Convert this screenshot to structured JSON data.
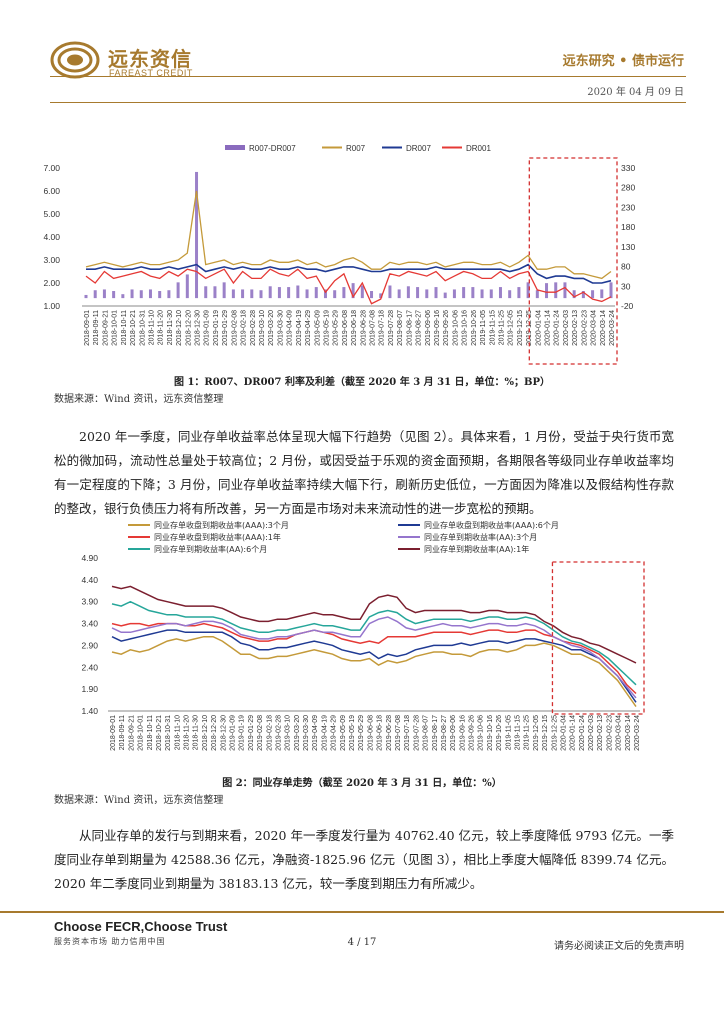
{
  "header": {
    "logo_cn": "远东资信",
    "logo_en": "FAREAST CREDIT",
    "report_title": "远东研究 • 债市运行",
    "date": "2020 年 04 月 09 日"
  },
  "figure1": {
    "caption": "图 1：R007、DR007 利率及利差（截至 2020 年 3 月 31 日，单位：%；BP）",
    "source": "数据来源：Wind 资讯，远东资信整理"
  },
  "paragraph1": "2020 年一季度，同业存单收益率总体呈现大幅下行趋势（见图 2）。具体来看，1 月份，受益于央行货币宽松的微加码，流动性总量处于较高位；2 月份，或因受益于乐观的资金面预期，各期限各等级同业存单收益率均有一定程度的下降；3 月份，同业存单收益率持续大幅下行，刷新历史低位，一方面因为降准以及假结构性存款的整改，银行负债压力将有所改善，另一方面是市场对未来流动性的进一步宽松的预期。",
  "figure2": {
    "caption": "图 2：同业存单走势（截至 2020 年 3 月 31 日，单位：%）",
    "source": "数据来源：Wind 资讯，远东资信整理"
  },
  "paragraph2": "从同业存单的发行与到期来看，2020 年一季度发行量为 40762.40 亿元，较上季度降低 9793 亿元。一季度同业存单到期量为 42588.36 亿元，净融资-1825.96 亿元（见图 3），相比上季度大幅降低 8399.74 亿元。2020 年二季度同业到期量为 38183.13 亿元，较一季度到期压力有所减少。",
  "footer": {
    "brand": "Choose FECR,Choose Trust",
    "slogan": "服务资本市场   助力信用中国",
    "page": "4 / 17",
    "disclaimer": "请务必阅读正文后的免责声明"
  },
  "chart_data": [
    {
      "type": "line",
      "dates": [
        "2018-09-01",
        "2018-09-11",
        "2018-09-21",
        "2018-10-01",
        "2018-10-11",
        "2018-10-21",
        "2018-10-31",
        "2018-11-10",
        "2018-11-20",
        "2018-11-30",
        "2018-12-10",
        "2018-12-20",
        "2018-12-30",
        "2019-01-09",
        "2019-01-19",
        "2019-01-29",
        "2019-02-08",
        "2019-02-18",
        "2019-02-28",
        "2019-03-10",
        "2019-03-20",
        "2019-03-30",
        "2019-04-09",
        "2019-04-19",
        "2019-04-29",
        "2019-05-09",
        "2019-05-19",
        "2019-05-29",
        "2019-06-08",
        "2019-06-18",
        "2019-06-28",
        "2019-07-08",
        "2019-07-18",
        "2019-07-28",
        "2019-08-07",
        "2019-08-17",
        "2019-08-27",
        "2019-09-06",
        "2019-09-16",
        "2019-09-26",
        "2019-10-06",
        "2019-10-16",
        "2019-10-26",
        "2019-11-05",
        "2019-11-15",
        "2019-11-25",
        "2019-12-05",
        "2019-12-15",
        "2019-12-25",
        "2020-01-04",
        "2020-01-14",
        "2020-01-24",
        "2020-02-03",
        "2020-02-13",
        "2020-02-23",
        "2020-03-04",
        "2020-03-14",
        "2020-03-24"
      ],
      "y_left_ticks": [
        "1.00",
        "2.00",
        "3.00",
        "4.00",
        "5.00",
        "6.00",
        "7.00"
      ],
      "y_right_ticks": [
        "-20",
        "30",
        "80",
        "130",
        "180",
        "230",
        "280",
        "330"
      ],
      "ylim_left": [
        1,
        7
      ],
      "ylim_right": [
        -20,
        330
      ],
      "legend": [
        "R007-DR007",
        "R007",
        "DR007",
        "DR001"
      ],
      "legend_position": "top",
      "colors": {
        "spread": "#8a6bbe",
        "r007": "#c49a3a",
        "dr007": "#1f3a93",
        "dr001": "#e53935",
        "highlight": "#d32f2f"
      },
      "series": [
        {
          "name": "R007",
          "axis": "left",
          "values": [
            2.7,
            2.8,
            2.9,
            2.8,
            2.7,
            2.8,
            2.9,
            2.8,
            2.8,
            2.9,
            3.0,
            3.3,
            6.0,
            2.8,
            2.9,
            3.0,
            2.8,
            2.9,
            2.8,
            2.8,
            3.0,
            2.9,
            2.9,
            3.0,
            2.8,
            2.9,
            2.7,
            2.8,
            3.0,
            3.1,
            2.9,
            2.6,
            2.6,
            2.9,
            2.8,
            2.9,
            2.9,
            2.8,
            2.9,
            2.7,
            2.8,
            2.9,
            2.9,
            2.8,
            2.8,
            2.9,
            2.7,
            2.9,
            3.2,
            2.6,
            2.6,
            2.7,
            2.7,
            2.4,
            2.4,
            2.3,
            2.2,
            2.5
          ]
        },
        {
          "name": "DR007",
          "axis": "left",
          "values": [
            2.6,
            2.6,
            2.7,
            2.6,
            2.6,
            2.6,
            2.7,
            2.6,
            2.6,
            2.7,
            2.6,
            2.7,
            2.8,
            2.5,
            2.6,
            2.7,
            2.6,
            2.7,
            2.6,
            2.6,
            2.7,
            2.6,
            2.6,
            2.7,
            2.6,
            2.6,
            2.5,
            2.6,
            2.7,
            2.7,
            2.6,
            2.5,
            2.5,
            2.6,
            2.6,
            2.6,
            2.6,
            2.6,
            2.7,
            2.6,
            2.6,
            2.6,
            2.6,
            2.6,
            2.6,
            2.6,
            2.5,
            2.6,
            2.8,
            2.4,
            2.2,
            2.3,
            2.3,
            2.2,
            2.2,
            2.0,
            2.0,
            2.1
          ]
        },
        {
          "name": "DR001",
          "axis": "left",
          "values": [
            2.3,
            2.0,
            2.5,
            2.2,
            2.3,
            2.4,
            2.5,
            2.3,
            2.2,
            2.5,
            2.3,
            2.6,
            2.5,
            2.2,
            2.4,
            2.6,
            2.0,
            2.5,
            2.2,
            2.2,
            2.6,
            2.4,
            2.3,
            2.6,
            2.2,
            2.3,
            1.6,
            2.1,
            2.4,
            1.4,
            2.0,
            1.1,
            1.3,
            2.4,
            2.3,
            2.5,
            2.4,
            2.3,
            2.5,
            2.1,
            2.3,
            2.5,
            2.4,
            2.2,
            2.2,
            2.5,
            2.2,
            2.4,
            2.5,
            1.7,
            1.6,
            1.6,
            1.8,
            1.4,
            1.6,
            1.3,
            1.2,
            1.4
          ]
        },
        {
          "name": "R007-DR007",
          "axis": "right",
          "values": [
            8,
            20,
            22,
            18,
            10,
            22,
            20,
            22,
            18,
            20,
            40,
            60,
            320,
            30,
            30,
            40,
            22,
            22,
            22,
            20,
            30,
            28,
            28,
            32,
            22,
            28,
            22,
            20,
            28,
            38,
            32,
            18,
            12,
            32,
            22,
            30,
            28,
            22,
            28,
            14,
            22,
            28,
            28,
            22,
            22,
            28,
            20,
            28,
            40,
            20,
            38,
            40,
            40,
            20,
            18,
            20,
            22,
            40
          ]
        }
      ],
      "annotation": "dashed box highlighting 2020Q1"
    },
    {
      "type": "line",
      "dates": [
        "2018-09-01",
        "2018-09-11",
        "2018-09-21",
        "2018-10-01",
        "2018-10-11",
        "2018-10-21",
        "2018-10-31",
        "2018-11-10",
        "2018-11-20",
        "2018-11-30",
        "2018-12-10",
        "2018-12-20",
        "2018-12-30",
        "2019-01-09",
        "2019-01-19",
        "2019-01-29",
        "2019-02-08",
        "2019-02-18",
        "2019-02-28",
        "2019-03-10",
        "2019-03-20",
        "2019-03-30",
        "2019-04-09",
        "2019-04-19",
        "2019-04-29",
        "2019-05-09",
        "2019-05-19",
        "2019-05-29",
        "2019-06-08",
        "2019-06-18",
        "2019-06-28",
        "2019-07-08",
        "2019-07-18",
        "2019-07-28",
        "2019-08-07",
        "2019-08-17",
        "2019-08-27",
        "2019-09-06",
        "2019-09-16",
        "2019-09-26",
        "2019-10-06",
        "2019-10-16",
        "2019-10-26",
        "2019-11-05",
        "2019-11-15",
        "2019-11-25",
        "2019-12-05",
        "2019-12-15",
        "2019-12-25",
        "2020-01-04",
        "2020-01-14",
        "2020-01-24",
        "2020-02-03",
        "2020-02-13",
        "2020-02-23",
        "2020-03-04",
        "2020-03-14",
        "2020-03-24"
      ],
      "y_ticks": [
        "1.40",
        "1.90",
        "2.40",
        "2.90",
        "3.40",
        "3.90",
        "4.40",
        "4.90"
      ],
      "ylim": [
        1.4,
        4.9
      ],
      "legend_position": "top",
      "colors": {
        "highlight": "#d32f2f"
      },
      "series": [
        {
          "name": "同业存单收盘到期收益率(AAA):3个月",
          "color": "#c49a3a",
          "values": [
            2.75,
            2.7,
            2.8,
            2.75,
            2.8,
            2.9,
            3.0,
            3.05,
            3.0,
            3.05,
            3.1,
            3.1,
            3.0,
            2.85,
            2.7,
            2.7,
            2.6,
            2.6,
            2.65,
            2.65,
            2.7,
            2.75,
            2.8,
            2.75,
            2.7,
            2.6,
            2.55,
            2.55,
            2.6,
            2.45,
            2.55,
            2.5,
            2.55,
            2.65,
            2.7,
            2.75,
            2.75,
            2.7,
            2.7,
            2.65,
            2.75,
            2.8,
            2.8,
            2.75,
            2.8,
            2.9,
            2.9,
            2.95,
            2.9,
            2.8,
            2.7,
            2.7,
            2.6,
            2.5,
            2.3,
            2.1,
            1.8,
            1.5
          ]
        },
        {
          "name": "同业存单收盘到期收益率(AAA):6个月",
          "color": "#1f3a93",
          "values": [
            3.1,
            3.0,
            3.05,
            3.1,
            3.15,
            3.2,
            3.25,
            3.25,
            3.2,
            3.2,
            3.2,
            3.2,
            3.2,
            3.1,
            2.95,
            2.9,
            2.8,
            2.8,
            2.85,
            2.85,
            2.9,
            2.95,
            3.0,
            2.95,
            2.9,
            2.8,
            2.75,
            2.7,
            2.75,
            2.6,
            2.7,
            2.65,
            2.7,
            2.8,
            2.85,
            2.9,
            2.9,
            2.9,
            2.95,
            2.9,
            2.95,
            3.0,
            3.0,
            2.95,
            3.0,
            3.05,
            3.05,
            3.0,
            2.95,
            2.9,
            2.8,
            2.8,
            2.7,
            2.6,
            2.4,
            2.2,
            1.9,
            1.6
          ]
        },
        {
          "name": "同业存单收盘到期收益率(AAA):1年",
          "color": "#e53935",
          "values": [
            3.4,
            3.35,
            3.4,
            3.4,
            3.35,
            3.4,
            3.4,
            3.4,
            3.35,
            3.35,
            3.4,
            3.35,
            3.3,
            3.2,
            3.1,
            3.05,
            3.0,
            3.0,
            3.05,
            3.05,
            3.15,
            3.2,
            3.25,
            3.2,
            3.15,
            3.05,
            3.0,
            2.95,
            3.0,
            2.95,
            3.1,
            3.1,
            3.1,
            3.1,
            3.15,
            3.2,
            3.2,
            3.2,
            3.2,
            3.15,
            3.2,
            3.25,
            3.25,
            3.2,
            3.2,
            3.25,
            3.25,
            3.15,
            3.1,
            3.0,
            2.95,
            2.9,
            2.8,
            2.7,
            2.5,
            2.3,
            2.0,
            1.8
          ]
        },
        {
          "name": "同业存单到期收益率(AA):3个月",
          "color": "#9575cd",
          "values": [
            3.3,
            3.2,
            3.2,
            3.25,
            3.3,
            3.35,
            3.4,
            3.4,
            3.35,
            3.4,
            3.45,
            3.45,
            3.4,
            3.3,
            3.15,
            3.1,
            3.05,
            3.05,
            3.1,
            3.1,
            3.15,
            3.2,
            3.25,
            3.2,
            3.2,
            3.15,
            3.1,
            3.1,
            3.4,
            3.5,
            3.55,
            3.45,
            3.3,
            3.25,
            3.3,
            3.35,
            3.4,
            3.35,
            3.35,
            3.3,
            3.35,
            3.4,
            3.4,
            3.35,
            3.35,
            3.4,
            3.35,
            3.25,
            3.1,
            3.0,
            2.9,
            2.85,
            2.75,
            2.6,
            2.4,
            2.2,
            1.95,
            1.7
          ]
        },
        {
          "name": "同业存单到期收益率(AA):6个月",
          "color": "#26a69a",
          "values": [
            3.85,
            3.8,
            3.9,
            3.8,
            3.7,
            3.65,
            3.6,
            3.6,
            3.55,
            3.55,
            3.55,
            3.55,
            3.5,
            3.4,
            3.3,
            3.25,
            3.2,
            3.2,
            3.25,
            3.25,
            3.3,
            3.35,
            3.4,
            3.35,
            3.35,
            3.3,
            3.25,
            3.25,
            3.55,
            3.65,
            3.7,
            3.65,
            3.5,
            3.4,
            3.45,
            3.5,
            3.5,
            3.5,
            3.5,
            3.45,
            3.5,
            3.55,
            3.55,
            3.5,
            3.5,
            3.55,
            3.5,
            3.4,
            3.25,
            3.1,
            3.0,
            2.95,
            2.85,
            2.75,
            2.6,
            2.4,
            2.2,
            2.0
          ]
        },
        {
          "name": "同业存单到期收益率(AA):1年",
          "color": "#7b1f2f",
          "values": [
            4.25,
            4.2,
            4.25,
            4.15,
            4.05,
            3.95,
            3.9,
            3.85,
            3.8,
            3.8,
            3.8,
            3.8,
            3.75,
            3.65,
            3.55,
            3.5,
            3.45,
            3.45,
            3.5,
            3.5,
            3.55,
            3.6,
            3.65,
            3.6,
            3.6,
            3.55,
            3.5,
            3.5,
            3.85,
            4.0,
            4.05,
            4.0,
            3.75,
            3.65,
            3.7,
            3.7,
            3.7,
            3.7,
            3.7,
            3.65,
            3.65,
            3.7,
            3.7,
            3.65,
            3.65,
            3.65,
            3.6,
            3.45,
            3.35,
            3.2,
            3.1,
            3.05,
            2.95,
            2.9,
            2.8,
            2.7,
            2.6,
            2.5
          ]
        }
      ],
      "annotation": "dashed box highlighting 2020Q1"
    }
  ]
}
